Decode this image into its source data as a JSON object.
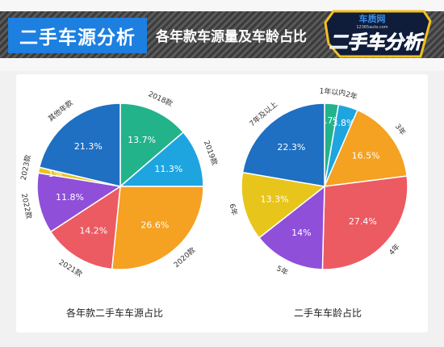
{
  "header": {
    "title": "二手车源分析",
    "subtitle": "各年款车源量及车龄占比",
    "logo_main": "二手车分析",
    "logo_brand": "车质网",
    "logo_site": "12365auto.com",
    "colors": {
      "title_bg": "#1d7fe0",
      "bar": "#444444",
      "logo_fill": "#2f86e6"
    }
  },
  "chart_data": [
    {
      "type": "pie",
      "title": "各年款二手车车源占比",
      "slices": [
        {
          "label": "2018款",
          "value": 13.7,
          "value_label": "13.7%",
          "color": "#22b38a"
        },
        {
          "label": "2019款",
          "value": 11.3,
          "value_label": "11.3%",
          "color": "#1ea5e0"
        },
        {
          "label": "2020款",
          "value": 26.6,
          "value_label": "26.6%",
          "color": "#f5a121"
        },
        {
          "label": "2021款",
          "value": 14.2,
          "value_label": "14.2%",
          "color": "#ec5a62"
        },
        {
          "label": "2022款",
          "value": 11.8,
          "value_label": "11.8%",
          "color": "#8f4fd9"
        },
        {
          "label": "2023款",
          "value": 1.1,
          "value_label": "1%",
          "color": "#e8c51b"
        },
        {
          "label": "其他年款",
          "value": 21.3,
          "value_label": "21.3%",
          "color": "#1f6fc3"
        }
      ]
    },
    {
      "type": "pie",
      "title": "二手车车龄占比",
      "slices": [
        {
          "label": "1年以内",
          "value": 2.7,
          "value_label": "2.7%",
          "color": "#22b38a"
        },
        {
          "label": "2年",
          "value": 3.8,
          "value_label": "3.8%",
          "color": "#1ea5e0"
        },
        {
          "label": "3年",
          "value": 16.5,
          "value_label": "16.5%",
          "color": "#f5a121"
        },
        {
          "label": "4年",
          "value": 27.4,
          "value_label": "27.4%",
          "color": "#ec5a62"
        },
        {
          "label": "5年",
          "value": 14,
          "value_label": "14%",
          "color": "#8f4fd9"
        },
        {
          "label": "6年",
          "value": 13.3,
          "value_label": "13.3%",
          "color": "#e8c51b"
        },
        {
          "label": "7年及以上",
          "value": 22.3,
          "value_label": "22.3%",
          "color": "#1f6fc3"
        }
      ]
    }
  ]
}
